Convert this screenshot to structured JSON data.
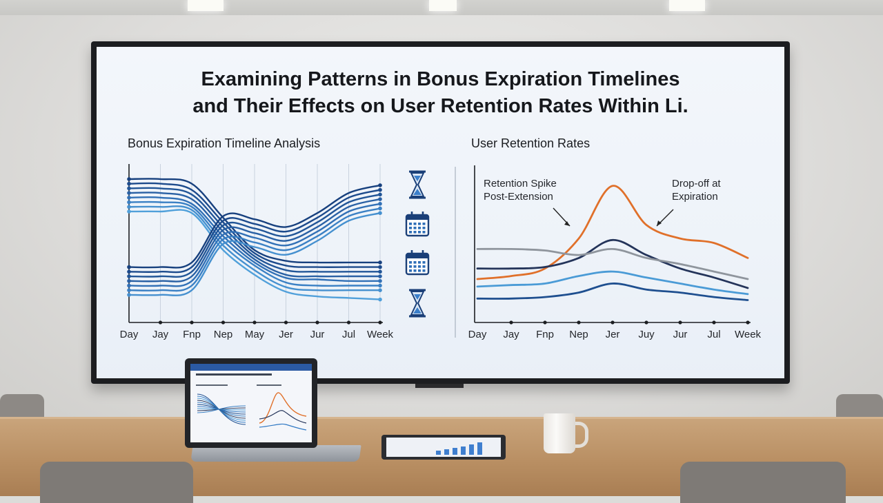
{
  "slide": {
    "title_line1": "Examining Patterns in Bonus Expiration Timelines",
    "title_line2": "and Their Effects on User Retention Rates Within Li."
  },
  "colors": {
    "navy": "#1e4f8f",
    "blue": "#2f78c4",
    "light_blue": "#4a9bd6",
    "orange": "#e0702a",
    "gray": "#8f959d",
    "dark_navy": "#24345a"
  },
  "chart_data": [
    {
      "type": "line",
      "title": "Bonus Expiration Timeline Analysis",
      "categories": [
        "Day",
        "Jay",
        "Fnp",
        "Nep",
        "May",
        "Jer",
        "Jur",
        "Jul",
        "Week"
      ],
      "xlabel": "",
      "ylabel": "",
      "grid": true,
      "legend": "none",
      "side_icons": [
        "hourglass-icon",
        "calendar-icon",
        "calendar-icon",
        "hourglass-icon"
      ],
      "series": [
        {
          "values": [
            9.2,
            9.2,
            8.9,
            6.7,
            4.6,
            3.9,
            3.8,
            3.8,
            3.8
          ]
        },
        {
          "values": [
            8.9,
            8.9,
            8.5,
            6.4,
            4.4,
            3.6,
            3.5,
            3.5,
            3.5
          ]
        },
        {
          "values": [
            8.6,
            8.6,
            8.2,
            6.1,
            4.2,
            3.3,
            3.2,
            3.2,
            3.2
          ]
        },
        {
          "values": [
            8.3,
            8.3,
            7.9,
            5.8,
            4.0,
            3.0,
            2.9,
            2.9,
            2.9
          ]
        },
        {
          "values": [
            8.0,
            8.0,
            7.6,
            5.5,
            3.8,
            2.8,
            2.7,
            2.6,
            2.6
          ]
        },
        {
          "values": [
            7.7,
            7.7,
            7.4,
            5.2,
            3.6,
            2.5,
            2.3,
            2.3,
            2.3
          ]
        },
        {
          "values": [
            7.4,
            7.4,
            7.2,
            4.9,
            3.3,
            2.2,
            2.0,
            2.0,
            2.0
          ]
        },
        {
          "values": [
            7.1,
            7.1,
            7.0,
            4.6,
            3.0,
            1.9,
            1.6,
            1.5,
            1.4
          ]
        },
        {
          "values": [
            3.5,
            3.5,
            3.8,
            6.8,
            6.6,
            6.1,
            7.0,
            8.3,
            8.8
          ]
        },
        {
          "values": [
            3.2,
            3.2,
            3.5,
            6.5,
            6.3,
            5.8,
            6.7,
            8.0,
            8.5
          ]
        },
        {
          "values": [
            2.9,
            2.9,
            3.2,
            6.2,
            6.0,
            5.5,
            6.4,
            7.7,
            8.2
          ]
        },
        {
          "values": [
            2.6,
            2.6,
            2.9,
            5.9,
            5.7,
            5.2,
            6.1,
            7.4,
            7.9
          ]
        },
        {
          "values": [
            2.3,
            2.3,
            2.6,
            5.6,
            5.4,
            4.9,
            5.8,
            7.1,
            7.6
          ]
        },
        {
          "values": [
            2.0,
            2.0,
            2.3,
            5.3,
            5.1,
            4.6,
            5.5,
            6.8,
            7.3
          ]
        },
        {
          "values": [
            1.7,
            1.7,
            2.0,
            5.0,
            4.8,
            4.3,
            5.2,
            6.5,
            7.0
          ]
        }
      ]
    },
    {
      "type": "line",
      "title": "User Retention Rates",
      "categories": [
        "Day",
        "Jay",
        "Fnp",
        "Nep",
        "Jer",
        "Juy",
        "Jur",
        "Jul",
        "Week"
      ],
      "xlabel": "",
      "ylabel": "",
      "grid": false,
      "legend": "none",
      "annotations": [
        {
          "text_line1": "Retention Spike",
          "text_line2": "Post-Extension"
        },
        {
          "text_line1": "Drop-off at",
          "text_line2": "Expiration"
        }
      ],
      "series": [
        {
          "color": "orange",
          "values": [
            2.8,
            3.0,
            3.5,
            5.5,
            9.0,
            6.4,
            5.5,
            5.2,
            4.2
          ]
        },
        {
          "color": "dark_navy",
          "values": [
            3.5,
            3.5,
            3.6,
            4.2,
            5.4,
            4.4,
            3.5,
            2.9,
            2.2
          ]
        },
        {
          "color": "gray",
          "values": [
            4.8,
            4.8,
            4.7,
            4.4,
            4.8,
            4.2,
            3.8,
            3.3,
            2.8
          ]
        },
        {
          "color": "light_blue",
          "values": [
            2.3,
            2.4,
            2.5,
            3.0,
            3.3,
            2.9,
            2.5,
            2.1,
            1.8
          ]
        },
        {
          "color": "navy",
          "values": [
            1.5,
            1.5,
            1.6,
            1.9,
            2.5,
            2.1,
            1.9,
            1.6,
            1.4
          ]
        }
      ]
    }
  ]
}
